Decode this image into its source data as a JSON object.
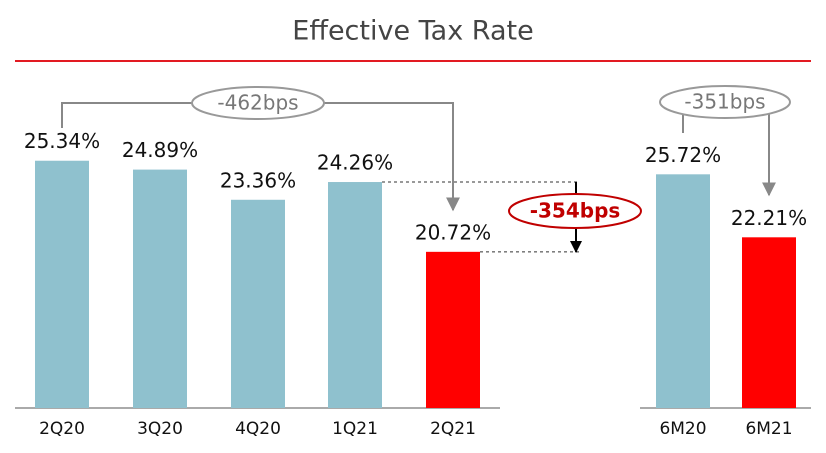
{
  "title": "Effective Tax Rate",
  "chart_data": [
    {
      "type": "bar",
      "categories": [
        "2Q20",
        "3Q20",
        "4Q20",
        "1Q21",
        "2Q21"
      ],
      "values": [
        25.34,
        24.89,
        23.36,
        24.26,
        20.72
      ],
      "value_labels": [
        "25.34%",
        "24.89%",
        "23.36%",
        "24.26%",
        "20.72%"
      ],
      "colors": [
        "#8fc1ce",
        "#8fc1ce",
        "#8fc1ce",
        "#8fc1ce",
        "#ff0000"
      ],
      "ylim": [
        12.8,
        27
      ],
      "annotations": [
        "-462bps",
        "-354bps"
      ]
    },
    {
      "type": "bar",
      "categories": [
        "6M20",
        "6M21"
      ],
      "values": [
        25.72,
        22.21
      ],
      "value_labels": [
        "25.72%",
        "22.21%"
      ],
      "colors": [
        "#8fc1ce",
        "#ff0000"
      ],
      "ylim": [
        12.7,
        28.3
      ],
      "annotations": [
        "-351bps"
      ]
    }
  ]
}
